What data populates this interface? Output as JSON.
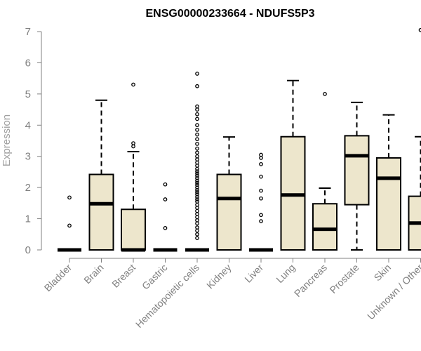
{
  "chart_data": {
    "type": "boxplot",
    "title": "ENSG00000233664 - NDUFS5P3",
    "xlabel": "",
    "ylabel": "Expression",
    "ylim": [
      0,
      7
    ],
    "yticks": [
      0,
      1,
      2,
      3,
      4,
      5,
      6,
      7
    ],
    "grid": false,
    "box_color": "#ede6cc",
    "line_color": "#000000",
    "axis_color": "#808080",
    "categories": [
      "Bladder",
      "Brain",
      "Breast",
      "Gastric",
      "Hematopoietic cells",
      "Kidney",
      "Liver",
      "Lung",
      "Pancreas",
      "Prostate",
      "Skin",
      "Unknown / Other"
    ],
    "boxes": [
      {
        "category": "Bladder",
        "whisker_low": 0,
        "q1": 0,
        "median": 0,
        "q3": 0,
        "whisker_high": 0,
        "outliers": [
          0.78,
          1.68
        ]
      },
      {
        "category": "Brain",
        "whisker_low": 0,
        "q1": 0,
        "median": 1.48,
        "q3": 2.42,
        "whisker_high": 4.8,
        "outliers": []
      },
      {
        "category": "Breast",
        "whisker_low": 0,
        "q1": 0,
        "median": 0,
        "q3": 1.3,
        "whisker_high": 3.15,
        "outliers": [
          3.32,
          3.42,
          5.3
        ]
      },
      {
        "category": "Gastric",
        "whisker_low": 0,
        "q1": 0,
        "median": 0,
        "q3": 0,
        "whisker_high": 0,
        "outliers": [
          0.7,
          1.62,
          2.1
        ]
      },
      {
        "category": "Hematopoietic cells",
        "whisker_low": 0,
        "q1": 0,
        "median": 0,
        "q3": 0,
        "whisker_high": 0,
        "outliers": [
          0.38,
          0.5,
          0.62,
          0.72,
          0.85,
          0.95,
          1.05,
          1.15,
          1.25,
          1.35,
          1.45,
          1.55,
          1.62,
          1.7,
          1.78,
          1.85,
          1.92,
          2.0,
          2.08,
          2.15,
          2.22,
          2.3,
          2.38,
          2.45,
          2.52,
          2.6,
          2.7,
          2.8,
          2.9,
          3.0,
          3.12,
          3.25,
          3.4,
          3.55,
          3.7,
          3.85,
          4.0,
          4.2,
          4.35,
          4.5,
          4.6,
          5.25,
          5.65
        ]
      },
      {
        "category": "Kidney",
        "whisker_low": 0,
        "q1": 0,
        "median": 1.65,
        "q3": 2.42,
        "whisker_high": 3.62,
        "outliers": []
      },
      {
        "category": "Liver",
        "whisker_low": 0,
        "q1": 0,
        "median": 0,
        "q3": 0,
        "whisker_high": 0,
        "outliers": [
          0.92,
          1.12,
          1.65,
          1.9,
          2.35,
          2.75,
          2.95,
          3.05
        ]
      },
      {
        "category": "Lung",
        "whisker_low": 0,
        "q1": 0,
        "median": 1.76,
        "q3": 3.63,
        "whisker_high": 5.43,
        "outliers": []
      },
      {
        "category": "Pancreas",
        "whisker_low": 0,
        "q1": 0,
        "median": 0.66,
        "q3": 1.48,
        "whisker_high": 1.98,
        "outliers": [
          5.0
        ]
      },
      {
        "category": "Prostate",
        "whisker_low": 0,
        "q1": 1.45,
        "median": 3.02,
        "q3": 3.66,
        "whisker_high": 4.73,
        "outliers": []
      },
      {
        "category": "Skin",
        "whisker_low": 0,
        "q1": 0,
        "median": 2.3,
        "q3": 2.95,
        "whisker_high": 4.33,
        "outliers": []
      },
      {
        "category": "Unknown / Other",
        "whisker_low": 0,
        "q1": 0,
        "median": 0.86,
        "q3": 1.72,
        "whisker_high": 3.63,
        "outliers": [
          7.05
        ]
      }
    ]
  }
}
